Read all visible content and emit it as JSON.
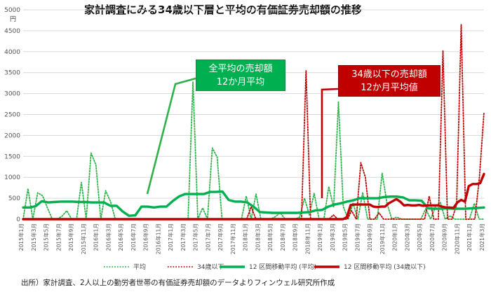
{
  "title": "家計調査にみる34歳以下層と平均の有価証券売却額の推移",
  "unit_label": "円",
  "source": "出所）家計調査、2人以上の勤労者世帯の有価証券売却額のデータよりフィンウェル研究所作成",
  "callouts": {
    "green": {
      "line1": "全平均の売却額",
      "line2": "12か月平均"
    },
    "red": {
      "line1": "34歳以下の売却額",
      "line2": "12か月平均値"
    }
  },
  "colors": {
    "green": "#2db34a",
    "dark_green": "#00b050",
    "red": "#c00000",
    "dark_red": "#b00000",
    "grid": "#d9d9d9"
  },
  "chart_data": {
    "type": "line",
    "title": "家計調査にみる34歳以下層と平均の有価証券売却額の推移",
    "xlabel": "",
    "ylabel": "円",
    "ylim": [
      0,
      5000
    ],
    "yticks": [
      0,
      500,
      1000,
      1500,
      2000,
      2500,
      3000,
      3500,
      4000,
      4500,
      5000
    ],
    "grid": true,
    "legend_position": "bottom",
    "x_tick_labels": [
      "2015年1月",
      "2015年3月",
      "2015年5月",
      "2015年7月",
      "2015年9月",
      "2015年11月",
      "2016年1月",
      "2016年3月",
      "2016年5月",
      "2016年7月",
      "2016年9月",
      "2016年11月",
      "2017年1月",
      "2017年3月",
      "2017年5月",
      "2017年7月",
      "2017年9月",
      "2017年11月",
      "2018年1月",
      "2018年3月",
      "2018年5月",
      "2018年7月",
      "2018年9月",
      "2018年11月",
      "2019年1月",
      "2019年3月",
      "2019年5月",
      "2019年7月",
      "2019年9月",
      "2019年11月",
      "2020年1月",
      "2020年3月",
      "2020年5月",
      "2020年7月",
      "2020年9月",
      "2020年11月",
      "2021年1月",
      "2021年3月"
    ],
    "series": [
      {
        "name": "平均",
        "style": "dotted",
        "color": "#2db34a",
        "values": [
          0,
          730,
          0,
          630,
          560,
          270,
          0,
          0,
          70,
          200,
          0,
          0,
          880,
          0,
          1580,
          1300,
          0,
          680,
          420,
          0,
          0,
          0,
          0,
          0,
          0,
          0,
          0,
          0,
          0,
          0,
          0,
          0,
          0,
          0,
          0,
          3280,
          0,
          270,
          0,
          1700,
          1480,
          0,
          0,
          0,
          0,
          0,
          550,
          0,
          600,
          0,
          0,
          0,
          60,
          150,
          0,
          0,
          0,
          50,
          500,
          100,
          620,
          0,
          0,
          780,
          280,
          2800,
          300,
          0,
          380,
          0,
          640,
          0,
          0,
          0,
          1100,
          380,
          0,
          50,
          0,
          0,
          0,
          0,
          0,
          250,
          0,
          300,
          400,
          0,
          80,
          0,
          0,
          0,
          0,
          380,
          0,
          0
        ]
      },
      {
        "name": "34歳以下",
        "style": "dotted",
        "color": "#c00000",
        "values": [
          0,
          0,
          0,
          0,
          0,
          0,
          0,
          0,
          0,
          0,
          0,
          0,
          0,
          0,
          0,
          0,
          0,
          0,
          0,
          0,
          0,
          0,
          0,
          0,
          0,
          0,
          0,
          0,
          0,
          0,
          0,
          0,
          0,
          0,
          0,
          0,
          0,
          0,
          0,
          0,
          0,
          0,
          0,
          0,
          0,
          0,
          0,
          0,
          0,
          0,
          300,
          0,
          0,
          0,
          0,
          0,
          0,
          0,
          0,
          0,
          0,
          0,
          3550,
          0,
          0,
          0,
          0,
          0,
          100,
          0,
          0,
          0,
          200,
          0,
          1350,
          1000,
          0,
          0,
          150,
          0,
          0,
          0,
          0,
          0,
          0,
          0,
          0,
          0,
          0,
          550,
          0,
          0,
          4020,
          0,
          0,
          350,
          4650,
          0,
          0,
          0,
          1000,
          2550
        ]
      },
      {
        "name": "12 区間移動平均 (平均)",
        "style": "solid",
        "color": "#00b050",
        "values": [
          280,
          280,
          310,
          430,
          400,
          410,
          420,
          420,
          420,
          410,
          410,
          400,
          400,
          400,
          320,
          320,
          180,
          80,
          90,
          300,
          300,
          280,
          300,
          300,
          430,
          540,
          600,
          600,
          600,
          600,
          650,
          650,
          660,
          460,
          420,
          420,
          400,
          300,
          170,
          160,
          150,
          150,
          150,
          150,
          150,
          160,
          170,
          210,
          220,
          300,
          350,
          380,
          420,
          450,
          500,
          500,
          500,
          500,
          530,
          540,
          540,
          520,
          450,
          450,
          440,
          260,
          250,
          250,
          260,
          250,
          250,
          250,
          260,
          270,
          280
        ]
      },
      {
        "name": "12 区間移動平均 (34歳以下)",
        "style": "solid",
        "color": "#c00000",
        "values": [
          0,
          0,
          0,
          0,
          0,
          0,
          0,
          0,
          0,
          0,
          0,
          0,
          0,
          0,
          0,
          0,
          0,
          0,
          0,
          0,
          0,
          0,
          0,
          0,
          0,
          0,
          0,
          0,
          0,
          0,
          0,
          0,
          0,
          0,
          0,
          0,
          0,
          0,
          0,
          0,
          0,
          0,
          0,
          0,
          0,
          0,
          0,
          0,
          0,
          0,
          0,
          0,
          0,
          0,
          0,
          0,
          0,
          0,
          0,
          0,
          0,
          0,
          0,
          0,
          0,
          0,
          0,
          0,
          0,
          0,
          0,
          0,
          0,
          0,
          0,
          0,
          0,
          0,
          0,
          0,
          0,
          0,
          0,
          0,
          0,
          50,
          340,
          350,
          350,
          350,
          350,
          350,
          300,
          290,
          300,
          300,
          380,
          430,
          480,
          420,
          330,
          340,
          330,
          330,
          340,
          320,
          330,
          330,
          330,
          330,
          300,
          280,
          280,
          270,
          400,
          460,
          420,
          790,
          840,
          840,
          860,
          1080
        ]
      }
    ]
  }
}
